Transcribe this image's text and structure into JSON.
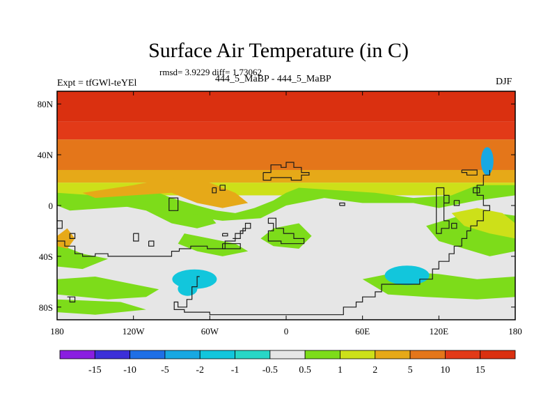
{
  "header": {
    "title": "Surface Air Temperature (in C)",
    "stats": "rmsd= 3.9229  diff= 1.73062",
    "experiment": "Expt = tfGWl-teYEl",
    "runs": "444_5_MaBP - 444_5_MaBP",
    "season": "DJF"
  },
  "chart_data": {
    "type": "heatmap",
    "title": "Surface Air Temperature (in C)",
    "subtitle": "444_5_MaBP - 444_5_MaBP",
    "x_ticks": [
      "180",
      "120W",
      "60W",
      "0",
      "60E",
      "120E",
      "180"
    ],
    "y_ticks": [
      "80N",
      "40N",
      "0",
      "40S",
      "80S"
    ],
    "xlim": [
      -180,
      180
    ],
    "ylim": [
      -90,
      90
    ],
    "colorbar": {
      "labels": [
        "-15",
        "-10",
        "-5",
        "-2",
        "-1",
        "-0.5",
        "0.5",
        "1",
        "2",
        "5",
        "10",
        "15"
      ],
      "colors": [
        "#8a1ee0",
        "#3c2fd8",
        "#1e6fe6",
        "#18a8e2",
        "#12c6dc",
        "#28d6c6",
        "#e6e6e6",
        "#7ddc1a",
        "#cde019",
        "#e6a918",
        "#e4761a",
        "#e23a18",
        "#da3010"
      ]
    },
    "latitude_bands": [
      {
        "lat": [
          66,
          90
        ],
        "value": 15
      },
      {
        "lat": [
          52,
          66
        ],
        "value": 10
      },
      {
        "lat": [
          28,
          52
        ],
        "value": 5
      },
      {
        "lat": [
          18,
          28
        ],
        "value": 2
      },
      {
        "lat": [
          8,
          18
        ],
        "value": 1
      }
    ],
    "cold_anomalies": [
      {
        "region": "South Atlantic",
        "lon": -72,
        "lat": -58,
        "value": -2
      },
      {
        "region": "Southern Indian Ocean",
        "lon": 95,
        "lat": -55,
        "value": -1.5
      },
      {
        "region": "Northwest Pacific",
        "lon": 158,
        "lat": 35,
        "value": -2.5
      }
    ],
    "grid": false,
    "legend": "bottom"
  }
}
